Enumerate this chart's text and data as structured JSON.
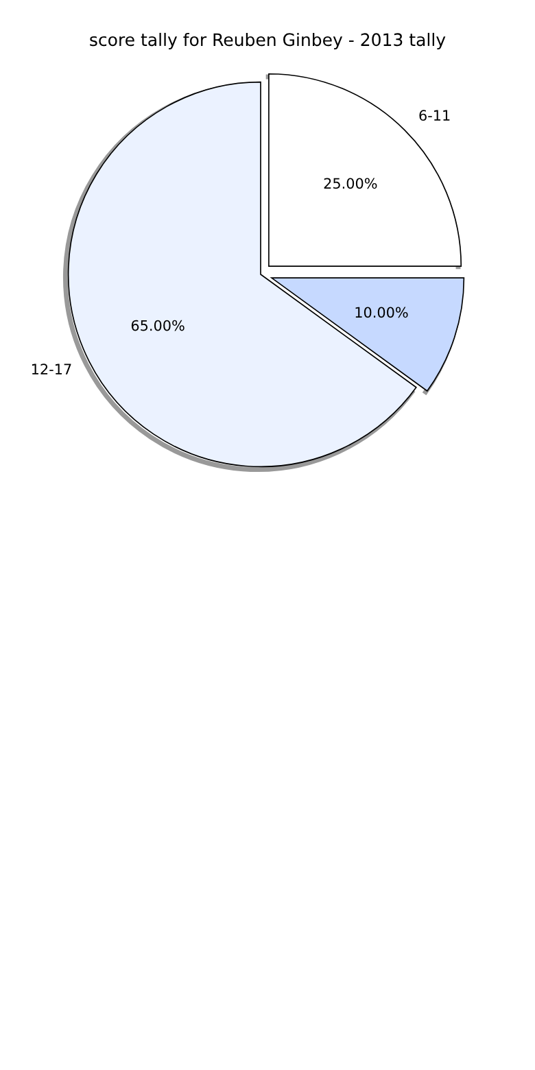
{
  "chart_data": {
    "type": "pie",
    "title": "score tally for Reuben Ginbey - 2013 tally",
    "categories": [
      "6-11",
      null,
      "12-17"
    ],
    "values": [
      25,
      10,
      65
    ],
    "colors": [
      "#ffffff",
      "#c6d9ff",
      "#ebf2ff"
    ],
    "value_labels": [
      "25.00%",
      "10.00%",
      "65.00%"
    ],
    "legend": false
  }
}
